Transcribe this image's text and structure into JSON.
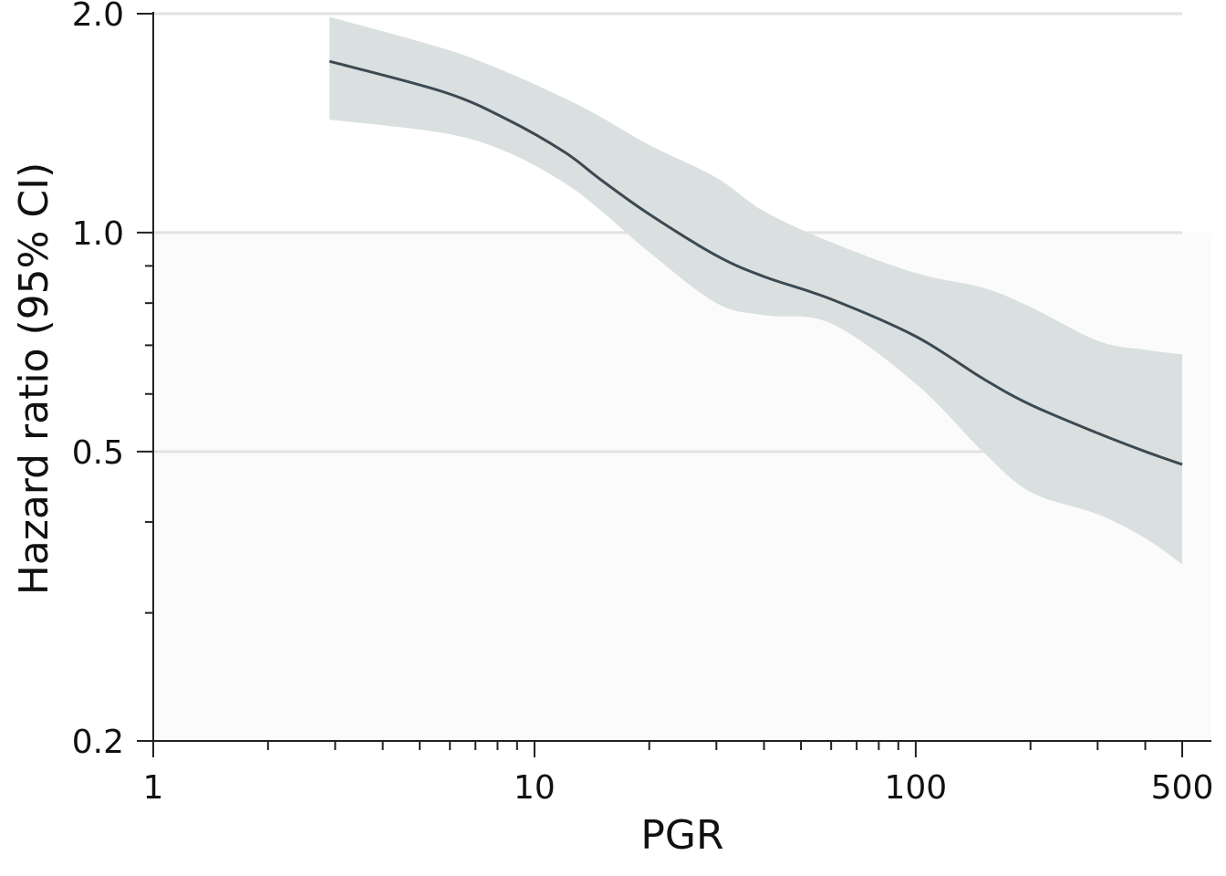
{
  "chart_data": {
    "type": "line",
    "title": "",
    "xlabel": "PGR",
    "ylabel": "Hazard ratio (95% CI)",
    "x_scale": "log",
    "y_scale": "log",
    "xlim": [
      1,
      500
    ],
    "ylim": [
      0.2,
      2.0
    ],
    "x_ticks": [
      {
        "value": 1,
        "label": "1"
      },
      {
        "value": 10,
        "label": "10"
      },
      {
        "value": 100,
        "label": "100"
      },
      {
        "value": 500,
        "label": "500"
      }
    ],
    "y_ticks": [
      {
        "value": 0.2,
        "label": "0.2"
      },
      {
        "value": 0.5,
        "label": "0.5"
      },
      {
        "value": 1.0,
        "label": "1.0"
      },
      {
        "value": 2.0,
        "label": "2.0"
      }
    ],
    "y_gridlines": [
      0.5,
      1.0,
      2.0
    ],
    "shaded_region_below_hr": 1.0,
    "series": [
      {
        "x": [
          2.9,
          5.8,
          8.5,
          12,
          15,
          20,
          30,
          40,
          60,
          100,
          150,
          200,
          300,
          400,
          500
        ],
        "y": [
          1.72,
          1.56,
          1.43,
          1.29,
          1.18,
          1.06,
          0.93,
          0.87,
          0.81,
          0.72,
          0.63,
          0.58,
          0.53,
          0.5,
          0.48
        ],
        "lower": [
          1.43,
          1.37,
          1.29,
          1.17,
          1.07,
          0.94,
          0.8,
          0.77,
          0.75,
          0.62,
          0.5,
          0.44,
          0.41,
          0.38,
          0.35
        ],
        "upper": [
          1.98,
          1.79,
          1.66,
          1.53,
          1.44,
          1.32,
          1.19,
          1.07,
          0.97,
          0.88,
          0.84,
          0.79,
          0.71,
          0.69,
          0.68
        ]
      }
    ],
    "colors": {
      "line": "#3b4a52",
      "ci_band": "#dadfdf",
      "below_one_shade": "#fbfbfb",
      "gridline": "#e2e2e2",
      "axis": "#222222"
    }
  }
}
